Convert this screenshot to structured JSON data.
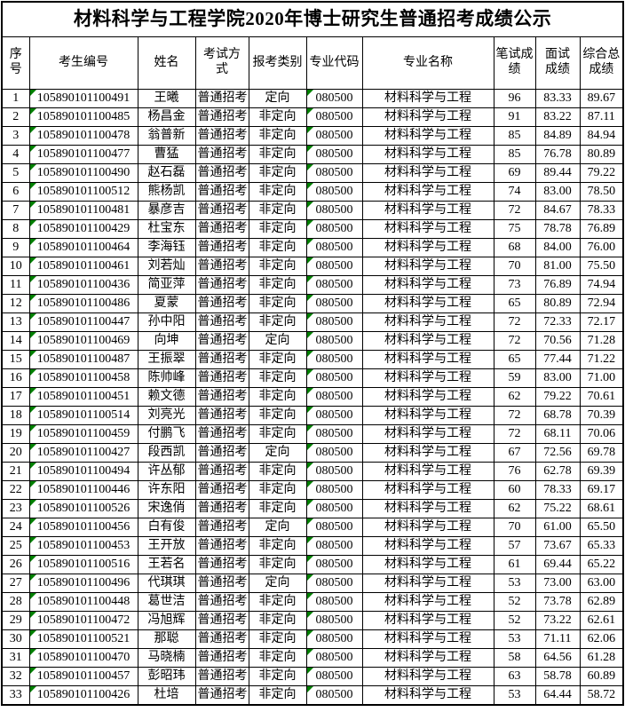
{
  "title": "材料科学与工程学院2020年博士研究生普通招考成绩公示",
  "colors": {
    "marker_green": "#008000",
    "border": "#000000",
    "background": "#ffffff",
    "text": "#000000"
  },
  "table": {
    "headers": [
      "序号",
      "考生编号",
      "姓名",
      "考试方式",
      "报考类别",
      "专业代码",
      "专业名称",
      "笔试成\n绩",
      "面试\n成绩",
      "综合总\n成绩"
    ],
    "rows": [
      [
        "1",
        "105890101100491",
        "王曦",
        "普通招考",
        "定向",
        "080500",
        "材料科学与工程",
        "96",
        "83.33",
        "89.67"
      ],
      [
        "2",
        "105890101100485",
        "杨昌金",
        "普通招考",
        "非定向",
        "080500",
        "材料科学与工程",
        "91",
        "83.22",
        "87.11"
      ],
      [
        "3",
        "105890101100478",
        "翁普新",
        "普通招考",
        "非定向",
        "080500",
        "材料科学与工程",
        "85",
        "84.89",
        "84.94"
      ],
      [
        "4",
        "105890101100477",
        "曹猛",
        "普通招考",
        "非定向",
        "080500",
        "材料科学与工程",
        "85",
        "76.78",
        "80.89"
      ],
      [
        "5",
        "105890101100490",
        "赵石磊",
        "普通招考",
        "非定向",
        "080500",
        "材料科学与工程",
        "69",
        "89.44",
        "79.22"
      ],
      [
        "6",
        "105890101100512",
        "熊杨凯",
        "普通招考",
        "非定向",
        "080500",
        "材料科学与工程",
        "74",
        "83.00",
        "78.50"
      ],
      [
        "7",
        "105890101100481",
        "暴彦吉",
        "普通招考",
        "非定向",
        "080500",
        "材料科学与工程",
        "72",
        "84.67",
        "78.33"
      ],
      [
        "8",
        "105890101100429",
        "杜宝东",
        "普通招考",
        "非定向",
        "080500",
        "材料科学与工程",
        "75",
        "78.78",
        "76.89"
      ],
      [
        "9",
        "105890101100464",
        "李海钰",
        "普通招考",
        "非定向",
        "080500",
        "材料科学与工程",
        "68",
        "84.00",
        "76.00"
      ],
      [
        "10",
        "105890101100461",
        "刘若灿",
        "普通招考",
        "非定向",
        "080500",
        "材料科学与工程",
        "70",
        "81.00",
        "75.50"
      ],
      [
        "11",
        "105890101100436",
        "简亚萍",
        "普通招考",
        "非定向",
        "080500",
        "材料科学与工程",
        "73",
        "76.89",
        "74.94"
      ],
      [
        "12",
        "105890101100486",
        "夏蒙",
        "普通招考",
        "非定向",
        "080500",
        "材料科学与工程",
        "65",
        "80.89",
        "72.94"
      ],
      [
        "13",
        "105890101100447",
        "孙中阳",
        "普通招考",
        "非定向",
        "080500",
        "材料科学与工程",
        "72",
        "72.33",
        "72.17"
      ],
      [
        "14",
        "105890101100469",
        "向坤",
        "普通招考",
        "定向",
        "080500",
        "材料科学与工程",
        "72",
        "70.56",
        "71.28"
      ],
      [
        "15",
        "105890101100487",
        "王振翠",
        "普通招考",
        "非定向",
        "080500",
        "材料科学与工程",
        "65",
        "77.44",
        "71.22"
      ],
      [
        "16",
        "105890101100458",
        "陈帅峰",
        "普通招考",
        "非定向",
        "080500",
        "材料科学与工程",
        "59",
        "83.00",
        "71.00"
      ],
      [
        "17",
        "105890101100451",
        "赖文德",
        "普通招考",
        "非定向",
        "080500",
        "材料科学与工程",
        "62",
        "79.22",
        "70.61"
      ],
      [
        "18",
        "105890101100514",
        "刘亮光",
        "普通招考",
        "非定向",
        "080500",
        "材料科学与工程",
        "72",
        "68.78",
        "70.39"
      ],
      [
        "19",
        "105890101100459",
        "付鹏飞",
        "普通招考",
        "非定向",
        "080500",
        "材料科学与工程",
        "72",
        "68.11",
        "70.06"
      ],
      [
        "20",
        "105890101100427",
        "段西凯",
        "普通招考",
        "定向",
        "080500",
        "材料科学与工程",
        "67",
        "72.56",
        "69.78"
      ],
      [
        "21",
        "105890101100494",
        "许丛郁",
        "普通招考",
        "非定向",
        "080500",
        "材料科学与工程",
        "76",
        "62.78",
        "69.39"
      ],
      [
        "22",
        "105890101100446",
        "许东阳",
        "普通招考",
        "非定向",
        "080500",
        "材料科学与工程",
        "60",
        "78.33",
        "69.17"
      ],
      [
        "23",
        "105890101100526",
        "宋逸俏",
        "普通招考",
        "非定向",
        "080500",
        "材料科学与工程",
        "62",
        "75.22",
        "68.61"
      ],
      [
        "24",
        "105890101100456",
        "白有俊",
        "普通招考",
        "定向",
        "080500",
        "材料科学与工程",
        "70",
        "61.00",
        "65.50"
      ],
      [
        "25",
        "105890101100453",
        "王开放",
        "普通招考",
        "非定向",
        "080500",
        "材料科学与工程",
        "57",
        "73.67",
        "65.33"
      ],
      [
        "26",
        "105890101100516",
        "王若名",
        "普通招考",
        "非定向",
        "080500",
        "材料科学与工程",
        "61",
        "69.44",
        "65.22"
      ],
      [
        "27",
        "105890101100496",
        "代琪琪",
        "普通招考",
        "定向",
        "080500",
        "材料科学与工程",
        "53",
        "73.00",
        "63.00"
      ],
      [
        "28",
        "105890101100448",
        "葛世洁",
        "普通招考",
        "非定向",
        "080500",
        "材料科学与工程",
        "52",
        "73.78",
        "62.89"
      ],
      [
        "29",
        "105890101100472",
        "冯旭辉",
        "普通招考",
        "非定向",
        "080500",
        "材料科学与工程",
        "52",
        "73.22",
        "62.61"
      ],
      [
        "30",
        "105890101100521",
        "那聪",
        "普通招考",
        "非定向",
        "080500",
        "材料科学与工程",
        "53",
        "71.11",
        "62.06"
      ],
      [
        "31",
        "105890101100470",
        "马晓楠",
        "普通招考",
        "非定向",
        "080500",
        "材料科学与工程",
        "58",
        "64.56",
        "61.28"
      ],
      [
        "32",
        "105890101100457",
        "彭昭玮",
        "普通招考",
        "非定向",
        "080500",
        "材料科学与工程",
        "63",
        "58.78",
        "60.89"
      ],
      [
        "33",
        "105890101100426",
        "杜培",
        "普通招考",
        "非定向",
        "080500",
        "材料科学与工程",
        "53",
        "64.44",
        "58.72"
      ]
    ]
  }
}
